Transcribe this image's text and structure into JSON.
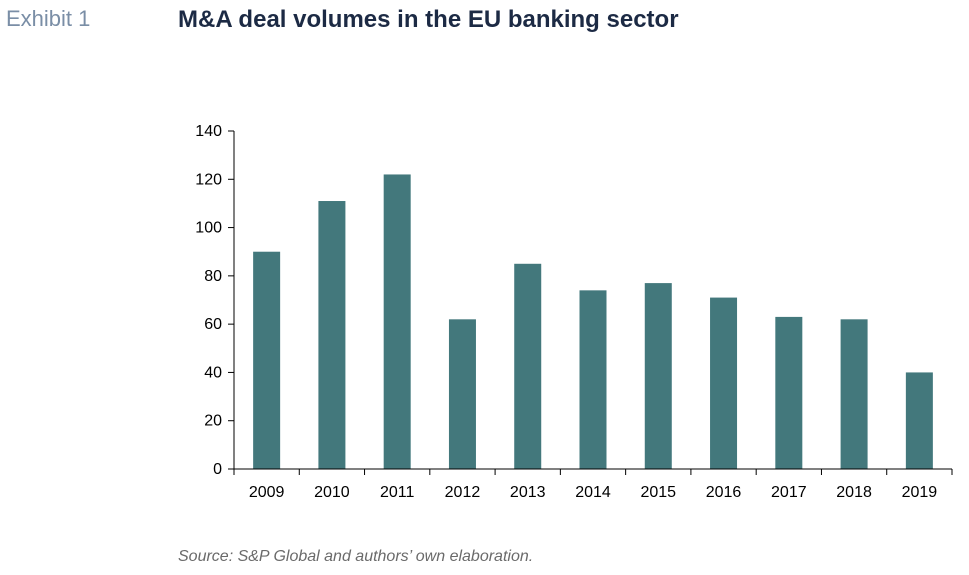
{
  "header": {
    "exhibit": "Exhibit 1",
    "title": "M&A deal volumes in the EU banking sector"
  },
  "source": "Source: S&P Global and authors’ own elaboration.",
  "colors": {
    "bar": "#43787c",
    "axis": "#000000",
    "text": "#000000"
  },
  "chart_data": {
    "type": "bar",
    "title": "M&A deal volumes in the EU banking sector",
    "xlabel": "",
    "ylabel": "",
    "categories": [
      "2009",
      "2010",
      "2011",
      "2012",
      "2013",
      "2014",
      "2015",
      "2016",
      "2017",
      "2018",
      "2019"
    ],
    "values": [
      90,
      111,
      122,
      62,
      85,
      74,
      77,
      71,
      63,
      62,
      40
    ],
    "ylim": [
      0,
      140
    ],
    "yticks": [
      0,
      20,
      40,
      60,
      80,
      100,
      120,
      140
    ],
    "grid": false,
    "legend": "none"
  }
}
